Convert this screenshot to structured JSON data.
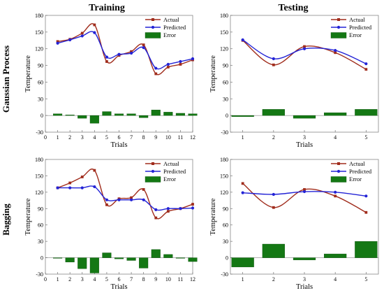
{
  "figure": {
    "col_titles": [
      "Training",
      "Testing"
    ],
    "row_titles": [
      "Gaussian Process",
      "Bagging"
    ]
  },
  "colors": {
    "actual": "#a02c1c",
    "predicted": "#2323d6",
    "error": "#147814",
    "error_edge": "#0a500a"
  },
  "chart_data": [
    {
      "id": "gp-training",
      "type": "line",
      "title": "",
      "xlabel": "Trials",
      "ylabel": "Temperature",
      "xlim": [
        0,
        12
      ],
      "xticks": [
        0,
        1,
        2,
        3,
        4,
        5,
        6,
        7,
        8,
        9,
        10,
        11,
        12
      ],
      "ylim": [
        -30,
        180
      ],
      "yticks": [
        -30,
        0,
        30,
        60,
        90,
        120,
        150,
        180
      ],
      "x": [
        1,
        2,
        3,
        4,
        5,
        6,
        7,
        8,
        9,
        10,
        11,
        12
      ],
      "series": [
        {
          "name": "Actual",
          "kind": "line",
          "values": [
            133,
            137,
            148,
            163,
            97,
            108,
            115,
            127,
            75,
            87,
            92,
            100
          ]
        },
        {
          "name": "Predicted",
          "kind": "line",
          "values": [
            130,
            136,
            143,
            149,
            105,
            110,
            112,
            122,
            85,
            92,
            97,
            102
          ]
        },
        {
          "name": "Error",
          "kind": "bar",
          "values": [
            3,
            1,
            -5,
            -14,
            7,
            3,
            3,
            -4,
            10,
            6,
            4,
            3
          ]
        }
      ],
      "legend": "top-right"
    },
    {
      "id": "gp-testing",
      "type": "line",
      "title": "",
      "xlabel": "Trials",
      "ylabel": "Temperature",
      "xlim": [
        0.6,
        5.4
      ],
      "xticks": [
        1,
        2,
        3,
        4,
        5
      ],
      "ylim": [
        -30,
        180
      ],
      "yticks": [
        -30,
        0,
        30,
        60,
        90,
        120,
        150,
        180
      ],
      "x": [
        1,
        2,
        3,
        4,
        5
      ],
      "series": [
        {
          "name": "Actual",
          "kind": "line",
          "values": [
            135,
            91,
            124,
            113,
            83
          ]
        },
        {
          "name": "Predicted",
          "kind": "line",
          "values": [
            136,
            102,
            120,
            117,
            93
          ]
        },
        {
          "name": "Error",
          "kind": "bar",
          "values": [
            -2,
            11,
            -5,
            5,
            11
          ]
        }
      ],
      "legend": "top-right"
    },
    {
      "id": "bagging-training",
      "type": "line",
      "title": "",
      "xlabel": "Trials",
      "ylabel": "Temperature",
      "xlim": [
        0,
        12
      ],
      "xticks": [
        0,
        1,
        2,
        3,
        4,
        5,
        6,
        7,
        8,
        9,
        10,
        11,
        12
      ],
      "ylim": [
        -30,
        180
      ],
      "yticks": [
        -30,
        0,
        30,
        60,
        90,
        120,
        150,
        180
      ],
      "x": [
        1,
        2,
        3,
        4,
        5,
        6,
        7,
        8,
        9,
        10,
        11,
        12
      ],
      "series": [
        {
          "name": "Actual",
          "kind": "line",
          "values": [
            128,
            137,
            148,
            160,
            97,
            108,
            110,
            125,
            73,
            85,
            90,
            98
          ]
        },
        {
          "name": "Predicted",
          "kind": "line",
          "values": [
            128,
            128,
            128,
            130,
            106,
            106,
            106,
            106,
            88,
            90,
            90,
            91
          ]
        },
        {
          "name": "Error",
          "kind": "bar",
          "values": [
            0,
            -8,
            -20,
            -28,
            9,
            -2,
            -5,
            -19,
            15,
            6,
            0,
            -7
          ]
        }
      ],
      "legend": "top-right"
    },
    {
      "id": "bagging-testing",
      "type": "line",
      "title": "",
      "xlabel": "Trials",
      "ylabel": "Temperature",
      "xlim": [
        0.6,
        5.4
      ],
      "xticks": [
        1,
        2,
        3,
        4,
        5
      ],
      "ylim": [
        -30,
        180
      ],
      "yticks": [
        -30,
        0,
        30,
        60,
        90,
        120,
        150,
        180
      ],
      "x": [
        1,
        2,
        3,
        4,
        5
      ],
      "series": [
        {
          "name": "Actual",
          "kind": "line",
          "values": [
            136,
            92,
            125,
            113,
            83
          ]
        },
        {
          "name": "Predicted",
          "kind": "line",
          "values": [
            119,
            116,
            121,
            120,
            113
          ]
        },
        {
          "name": "Error",
          "kind": "bar",
          "values": [
            -17,
            25,
            -4,
            7,
            30
          ]
        }
      ],
      "legend": "top-right"
    }
  ]
}
